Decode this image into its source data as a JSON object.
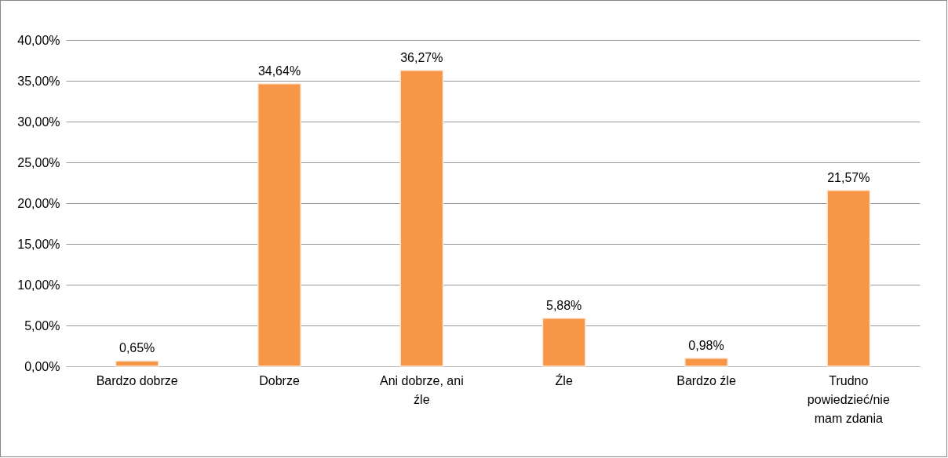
{
  "chart_data": {
    "type": "bar",
    "categories": [
      "Bardzo dobrze",
      "Dobrze",
      "Ani dobrze, ani źle",
      "Źle",
      "Bardzo źle",
      "Trudno powiedzieć/nie mam zdania"
    ],
    "values": [
      0.65,
      34.64,
      36.27,
      5.88,
      0.98,
      21.57
    ],
    "value_labels": [
      "0,65%",
      "34,64%",
      "36,27%",
      "5,88%",
      "0,98%",
      "21,57%"
    ],
    "color": "#f79646",
    "ylim": [
      0,
      40
    ],
    "yticks": [
      {
        "value": 0,
        "label": "0,00%"
      },
      {
        "value": 5,
        "label": "5,00%"
      },
      {
        "value": 10,
        "label": "10,00%"
      },
      {
        "value": 15,
        "label": "15,00%"
      },
      {
        "value": 20,
        "label": "20,00%"
      },
      {
        "value": 25,
        "label": "25,00%"
      },
      {
        "value": 30,
        "label": "30,00%"
      },
      {
        "value": 35,
        "label": "35,00%"
      },
      {
        "value": 40,
        "label": "40,00%"
      }
    ],
    "grid": "y"
  }
}
